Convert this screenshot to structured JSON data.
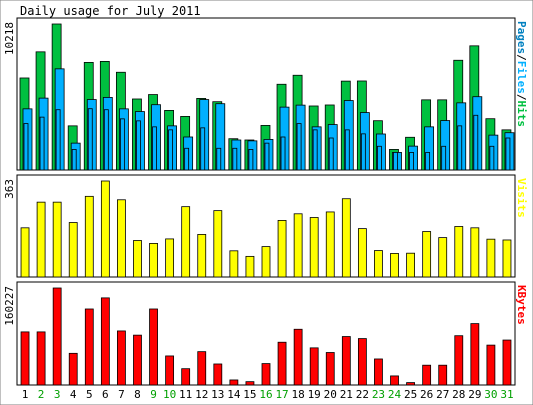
{
  "title": "Daily usage for July 2011",
  "colors": {
    "hits": "#00c040",
    "files": "#00b0ff",
    "pages": "#0080c0",
    "visits": "#ffff00",
    "kbytes": "#ff0000",
    "weekend_label": "#00a000",
    "weekday_label": "#000000",
    "frame": "#000000",
    "panel_bg": "#ffffff"
  },
  "chart_data": [
    {
      "type": "bar",
      "panel": "hits-files-pages",
      "ymax_label": "10218",
      "ylim": [
        0,
        10218
      ],
      "legend": [
        {
          "text": "Pages",
          "color": "#0080c0"
        },
        {
          "text": "/",
          "color": "#000000"
        },
        {
          "text": "Files",
          "color": "#00b0ff"
        },
        {
          "text": "/",
          "color": "#000000"
        },
        {
          "text": "Hits",
          "color": "#00c040"
        }
      ],
      "categories": [
        "1",
        "2",
        "3",
        "4",
        "5",
        "6",
        "7",
        "8",
        "9",
        "10",
        "11",
        "12",
        "13",
        "14",
        "15",
        "16",
        "17",
        "18",
        "19",
        "20",
        "21",
        "22",
        "23",
        "24",
        "25",
        "26",
        "27",
        "28",
        "29",
        "30",
        "31"
      ],
      "series": [
        {
          "name": "Hits",
          "values": [
            6440,
            8270,
            10218,
            3090,
            7530,
            7600,
            6840,
            4970,
            5280,
            4170,
            3750,
            5010,
            4780,
            2190,
            2100,
            3120,
            6000,
            6630,
            4480,
            4550,
            6220,
            6230,
            3450,
            1440,
            2290,
            4910,
            4910,
            7680,
            8690,
            3590,
            2810
          ]
        },
        {
          "name": "Files",
          "values": [
            4280,
            5030,
            7080,
            1880,
            4930,
            5080,
            4280,
            4090,
            4570,
            3090,
            2310,
            4930,
            4640,
            2100,
            2040,
            2140,
            4400,
            4540,
            3020,
            3180,
            4860,
            4020,
            2520,
            1230,
            1670,
            3020,
            3460,
            4700,
            5130,
            2440,
            2610
          ]
        },
        {
          "name": "Pages",
          "values": [
            3250,
            3700,
            4220,
            1440,
            4290,
            4220,
            3580,
            3440,
            3020,
            2810,
            1520,
            2950,
            1520,
            1520,
            1440,
            1880,
            2310,
            3250,
            2810,
            2240,
            2810,
            2530,
            1660,
            1230,
            1230,
            1230,
            1660,
            3090,
            3830,
            1660,
            2240
          ]
        }
      ]
    },
    {
      "type": "bar",
      "panel": "visits",
      "ymax_label": "363",
      "ylim": [
        0,
        363
      ],
      "legend": [
        {
          "text": "Visits",
          "color": "#ffff00"
        }
      ],
      "categories": [
        "1",
        "2",
        "3",
        "4",
        "5",
        "6",
        "7",
        "8",
        "9",
        "10",
        "11",
        "12",
        "13",
        "14",
        "15",
        "16",
        "17",
        "18",
        "19",
        "20",
        "21",
        "22",
        "23",
        "24",
        "25",
        "26",
        "27",
        "28",
        "29",
        "30",
        "31"
      ],
      "series": [
        {
          "name": "Visits",
          "values": [
            186,
            283,
            283,
            206,
            305,
            363,
            292,
            138,
            127,
            144,
            266,
            161,
            251,
            99,
            78,
            115,
            214,
            239,
            225,
            246,
            296,
            183,
            100,
            89,
            90,
            172,
            149,
            191,
            186,
            143,
            140
          ]
        }
      ]
    },
    {
      "type": "bar",
      "panel": "kbytes",
      "ymax_label": "160227",
      "ylim": [
        0,
        160227
      ],
      "legend": [
        {
          "text": "KBytes",
          "color": "#ff0000"
        }
      ],
      "categories": [
        "1",
        "2",
        "3",
        "4",
        "5",
        "6",
        "7",
        "8",
        "9",
        "10",
        "11",
        "12",
        "13",
        "14",
        "15",
        "16",
        "17",
        "18",
        "19",
        "20",
        "21",
        "22",
        "23",
        "24",
        "25",
        "26",
        "27",
        "28",
        "29",
        "30",
        "31"
      ],
      "series": [
        {
          "name": "KBytes",
          "values": [
            87720,
            87720,
            160227,
            52320,
            125560,
            143920,
            89290,
            82350,
            125560,
            47990,
            26950,
            55100,
            34720,
            8330,
            5530,
            35400,
            70640,
            92070,
            61360,
            53680,
            80060,
            76700,
            43000,
            15000,
            4000,
            32700,
            32700,
            81440,
            101420,
            65880,
            74250
          ]
        }
      ]
    }
  ],
  "weekend_days": [
    "2",
    "3",
    "9",
    "10",
    "16",
    "17",
    "23",
    "24",
    "30",
    "31"
  ]
}
